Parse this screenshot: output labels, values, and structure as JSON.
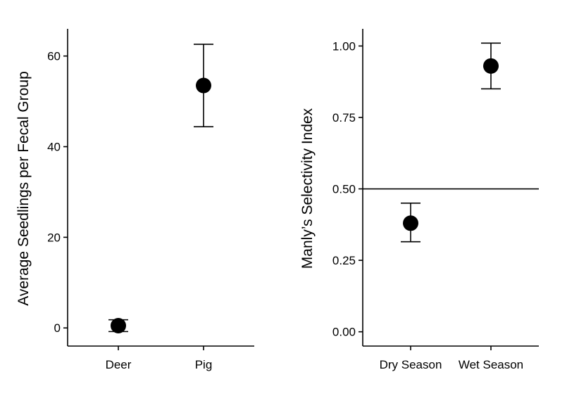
{
  "chart_data": [
    {
      "type": "scatter",
      "title": "",
      "xlabel": "",
      "ylabel": "Average Seedlings per Fecal Group",
      "categories": [
        "Deer",
        "Pig"
      ],
      "values": [
        0.5,
        53.5
      ],
      "error_low": [
        -0.8,
        44.4
      ],
      "error_high": [
        1.8,
        62.6
      ],
      "yticks": [
        0,
        20,
        40,
        60
      ],
      "ytick_labels": [
        "0",
        "20",
        "40",
        "60"
      ],
      "ylim": [
        -4,
        66
      ],
      "grid": false,
      "point_color": "#000000"
    },
    {
      "type": "scatter",
      "title": "",
      "xlabel": "",
      "ylabel": "Manly’s Selectivity Index",
      "categories": [
        "Dry Season",
        "Wet Season"
      ],
      "values": [
        0.38,
        0.93
      ],
      "error_low": [
        0.315,
        0.85
      ],
      "error_high": [
        0.45,
        1.01
      ],
      "yticks": [
        0,
        0.25,
        0.5,
        0.75,
        1.0
      ],
      "ytick_labels": [
        "0.00",
        "0.25",
        "0.50",
        "0.75",
        "1.00"
      ],
      "ylim": [
        -0.05,
        1.06
      ],
      "reference_line": 0.5,
      "grid": false,
      "point_color": "#000000"
    }
  ]
}
